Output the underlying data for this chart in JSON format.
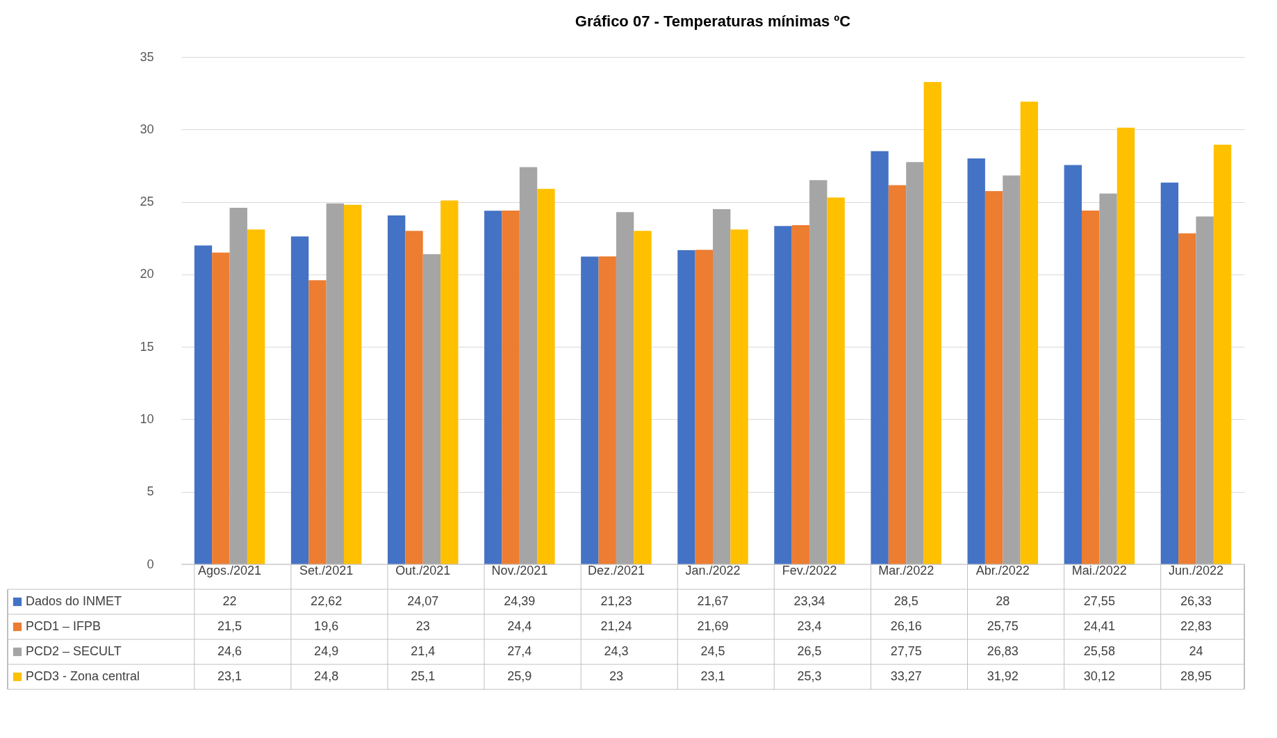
{
  "chart_data": {
    "type": "bar",
    "title": "Gráfico 07 - Temperaturas mínimas ºC",
    "categories": [
      "Agos./2021",
      "Set./2021",
      "Out./2021",
      "Nov./2021",
      "Dez./2021",
      "Jan./2022",
      "Fev./2022",
      "Mar./2022",
      "Abr./2022",
      "Mai./2022",
      "Jun./2022"
    ],
    "series": [
      {
        "name": "Dados do INMET",
        "color": "#4472c4",
        "values": [
          22,
          22.62,
          24.07,
          24.39,
          21.23,
          21.67,
          23.34,
          28.5,
          28,
          27.55,
          26.33
        ],
        "value_labels": [
          "22",
          "22,62",
          "24,07",
          "24,39",
          "21,23",
          "21,67",
          "23,34",
          "28,5",
          "28",
          "27,55",
          "26,33"
        ]
      },
      {
        "name": "PCD1 – IFPB",
        "color": "#ed7d31",
        "values": [
          21.5,
          19.6,
          23,
          24.4,
          21.24,
          21.69,
          23.4,
          26.16,
          25.75,
          24.41,
          22.83
        ],
        "value_labels": [
          "21,5",
          "19,6",
          "23",
          "24,4",
          "21,24",
          "21,69",
          "23,4",
          "26,16",
          "25,75",
          "24,41",
          "22,83"
        ]
      },
      {
        "name": "PCD2 –  SECULT",
        "color": "#a5a5a5",
        "values": [
          24.6,
          24.9,
          21.4,
          27.4,
          24.3,
          24.5,
          26.5,
          27.75,
          26.83,
          25.58,
          24
        ],
        "value_labels": [
          "24,6",
          "24,9",
          "21,4",
          "27,4",
          "24,3",
          "24,5",
          "26,5",
          "27,75",
          "26,83",
          "25,58",
          "24"
        ]
      },
      {
        "name": "PCD3 - Zona central",
        "color": "#ffc000",
        "values": [
          23.1,
          24.8,
          25.1,
          25.9,
          23,
          23.1,
          25.3,
          33.27,
          31.92,
          30.12,
          28.95
        ],
        "value_labels": [
          "23,1",
          "24,8",
          "25,1",
          "25,9",
          "23",
          "23,1",
          "25,3",
          "33,27",
          "31,92",
          "30,12",
          "28,95"
        ]
      }
    ],
    "ylim": [
      0,
      35
    ],
    "yticks": [
      0,
      5,
      10,
      15,
      20,
      25,
      30,
      35
    ],
    "grid": "y",
    "legend": "bottom"
  }
}
